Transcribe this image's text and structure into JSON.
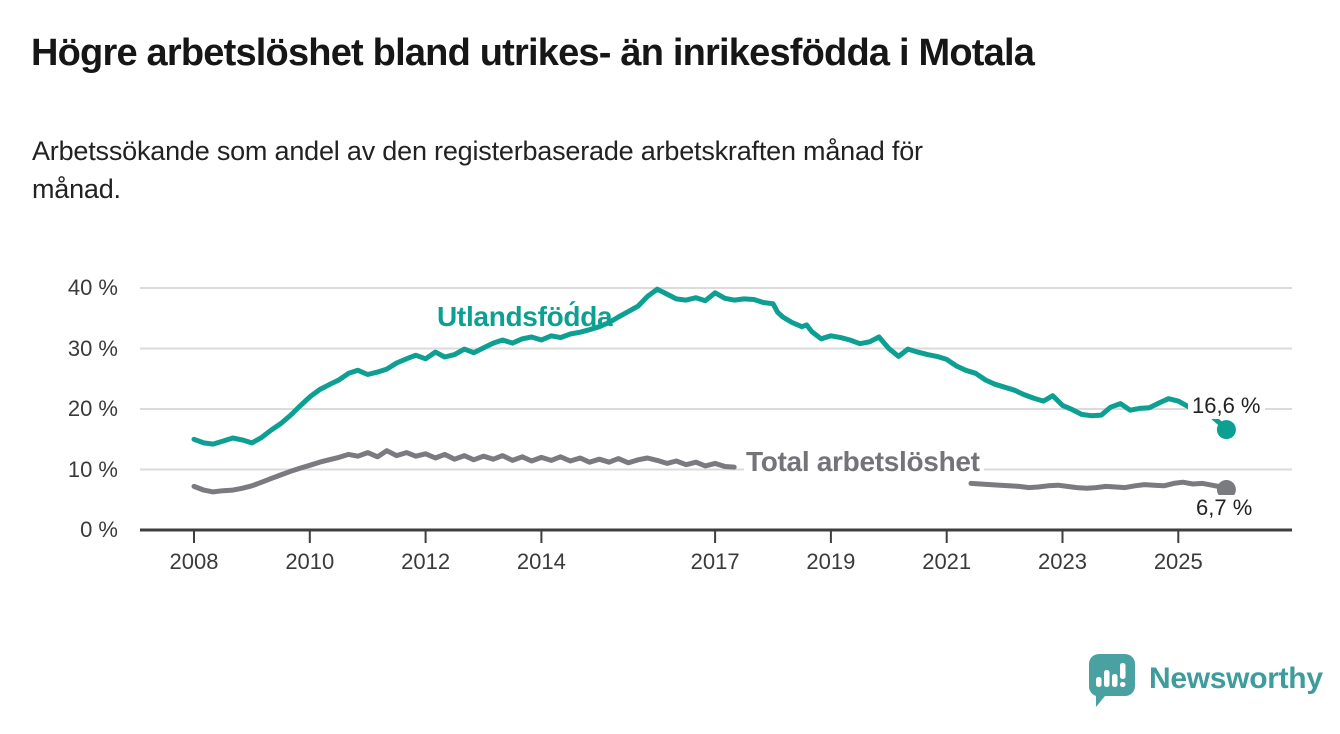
{
  "header": {
    "title": "Högre arbetslöshet bland utrikes- än inrikesfödda i Motala",
    "subtitle_lines": [
      "Arbetssökande som andel av den registerbaserade arbetskraften månad för",
      "månad."
    ]
  },
  "branding": {
    "logo_text": "Newsworthy",
    "logo_icon": "speech-bubble-bar-chart-icon",
    "logo_color": "#4aa1a1",
    "logo_text_color": "#3e9c9c"
  },
  "colors": {
    "series_foreign_born": "#0d9f92",
    "series_total": "#7a7a81",
    "gridline": "#dbdbdb",
    "axis": "#3f3f3f",
    "text_dark": "#222222",
    "tick_text": "#3a3a3a"
  },
  "chart_data": {
    "type": "line",
    "title": "Högre arbetslöshet bland utrikes- än inrikesfödda i Motala",
    "subtitle": "Arbetssökande som andel av den registerbaserade arbetskraften månad för månad.",
    "unit": "%",
    "ylim": [
      0,
      40
    ],
    "grid": true,
    "legend_position": "inline-labels",
    "yticks": [
      {
        "v": 40,
        "label": "40 %"
      },
      {
        "v": 30,
        "label": "30 %"
      },
      {
        "v": 20,
        "label": "20 %"
      },
      {
        "v": 10,
        "label": "10 %"
      },
      {
        "v": 0,
        "label": "0 %"
      }
    ],
    "xticks": [
      {
        "year": 2008,
        "label": "2008"
      },
      {
        "year": 2010,
        "label": "2010"
      },
      {
        "year": 2012,
        "label": "2012"
      },
      {
        "year": 2014,
        "label": "2014"
      },
      {
        "year": 2017,
        "label": "2017"
      },
      {
        "year": 2019,
        "label": "2019"
      },
      {
        "year": 2021,
        "label": "2021"
      },
      {
        "year": 2023,
        "label": "2023"
      },
      {
        "year": 2025,
        "label": "2025"
      }
    ],
    "series": [
      {
        "name": "Utlandsföd́da",
        "color": "#0d9f92",
        "end_label": "16,6 %",
        "end_value": 16.6,
        "points": [
          [
            2008.0,
            15.0
          ],
          [
            2008.17,
            14.4
          ],
          [
            2008.33,
            14.2
          ],
          [
            2008.5,
            14.7
          ],
          [
            2008.67,
            15.2
          ],
          [
            2008.83,
            14.9
          ],
          [
            2009.0,
            14.4
          ],
          [
            2009.17,
            15.3
          ],
          [
            2009.33,
            16.5
          ],
          [
            2009.5,
            17.6
          ],
          [
            2009.67,
            19.0
          ],
          [
            2009.83,
            20.5
          ],
          [
            2010.0,
            22.0
          ],
          [
            2010.17,
            23.2
          ],
          [
            2010.33,
            24.0
          ],
          [
            2010.5,
            24.8
          ],
          [
            2010.67,
            25.9
          ],
          [
            2010.83,
            26.4
          ],
          [
            2011.0,
            25.7
          ],
          [
            2011.17,
            26.1
          ],
          [
            2011.33,
            26.6
          ],
          [
            2011.5,
            27.6
          ],
          [
            2011.67,
            28.3
          ],
          [
            2011.83,
            28.9
          ],
          [
            2012.0,
            28.3
          ],
          [
            2012.17,
            29.4
          ],
          [
            2012.33,
            28.6
          ],
          [
            2012.5,
            29.0
          ],
          [
            2012.67,
            29.9
          ],
          [
            2012.83,
            29.3
          ],
          [
            2013.0,
            30.1
          ],
          [
            2013.17,
            30.9
          ],
          [
            2013.33,
            31.4
          ],
          [
            2013.5,
            30.9
          ],
          [
            2013.67,
            31.6
          ],
          [
            2013.83,
            31.9
          ],
          [
            2014.0,
            31.4
          ],
          [
            2014.17,
            32.1
          ],
          [
            2014.33,
            31.8
          ],
          [
            2014.5,
            32.4
          ],
          [
            2014.67,
            32.7
          ],
          [
            2014.83,
            33.1
          ],
          [
            2015.0,
            33.6
          ],
          [
            2015.17,
            34.3
          ],
          [
            2015.33,
            35.2
          ],
          [
            2015.5,
            36.1
          ],
          [
            2015.67,
            37.0
          ],
          [
            2015.83,
            38.6
          ],
          [
            2016.0,
            39.8
          ],
          [
            2016.17,
            39.0
          ],
          [
            2016.33,
            38.2
          ],
          [
            2016.5,
            38.0
          ],
          [
            2016.67,
            38.4
          ],
          [
            2016.83,
            37.9
          ],
          [
            2017.0,
            39.2
          ],
          [
            2017.17,
            38.3
          ],
          [
            2017.33,
            38.0
          ],
          [
            2017.5,
            38.2
          ],
          [
            2017.67,
            38.1
          ],
          [
            2017.83,
            37.6
          ],
          [
            2018.0,
            37.4
          ],
          [
            2018.08,
            36.0
          ],
          [
            2018.17,
            35.2
          ],
          [
            2018.33,
            34.3
          ],
          [
            2018.5,
            33.6
          ],
          [
            2018.58,
            33.9
          ],
          [
            2018.67,
            32.8
          ],
          [
            2018.83,
            31.6
          ],
          [
            2019.0,
            32.1
          ],
          [
            2019.17,
            31.8
          ],
          [
            2019.33,
            31.4
          ],
          [
            2019.5,
            30.8
          ],
          [
            2019.67,
            31.1
          ],
          [
            2019.83,
            31.9
          ],
          [
            2020.0,
            30.0
          ],
          [
            2020.17,
            28.7
          ],
          [
            2020.33,
            29.9
          ],
          [
            2020.5,
            29.4
          ],
          [
            2020.67,
            29.0
          ],
          [
            2020.83,
            28.7
          ],
          [
            2021.0,
            28.2
          ],
          [
            2021.17,
            27.1
          ],
          [
            2021.33,
            26.4
          ],
          [
            2021.5,
            25.9
          ],
          [
            2021.67,
            24.8
          ],
          [
            2021.83,
            24.1
          ],
          [
            2022.0,
            23.6
          ],
          [
            2022.17,
            23.1
          ],
          [
            2022.33,
            22.4
          ],
          [
            2022.5,
            21.8
          ],
          [
            2022.67,
            21.3
          ],
          [
            2022.83,
            22.2
          ],
          [
            2023.0,
            20.6
          ],
          [
            2023.17,
            19.9
          ],
          [
            2023.33,
            19.1
          ],
          [
            2023.5,
            18.9
          ],
          [
            2023.67,
            19.0
          ],
          [
            2023.83,
            20.3
          ],
          [
            2024.0,
            20.9
          ],
          [
            2024.17,
            19.8
          ],
          [
            2024.33,
            20.1
          ],
          [
            2024.5,
            20.2
          ],
          [
            2024.67,
            21.0
          ],
          [
            2024.83,
            21.7
          ],
          [
            2025.0,
            21.3
          ],
          [
            2025.17,
            20.4
          ],
          [
            2025.33,
            19.9
          ],
          [
            2025.5,
            19.7
          ],
          [
            2025.58,
            18.8
          ],
          [
            2025.75,
            17.4
          ],
          [
            2025.83,
            16.6
          ]
        ]
      },
      {
        "name": "Total arbetslöshet",
        "color": "#7a7a81",
        "end_label": "6,7 %",
        "end_value": 6.7,
        "label_gap_years": [
          2017.45,
          2021.4
        ],
        "points": [
          [
            2008.0,
            7.2
          ],
          [
            2008.17,
            6.6
          ],
          [
            2008.33,
            6.3
          ],
          [
            2008.5,
            6.5
          ],
          [
            2008.67,
            6.6
          ],
          [
            2008.83,
            6.9
          ],
          [
            2009.0,
            7.3
          ],
          [
            2009.17,
            7.9
          ],
          [
            2009.33,
            8.5
          ],
          [
            2009.5,
            9.1
          ],
          [
            2009.67,
            9.7
          ],
          [
            2009.83,
            10.2
          ],
          [
            2010.0,
            10.7
          ],
          [
            2010.17,
            11.2
          ],
          [
            2010.33,
            11.6
          ],
          [
            2010.5,
            12.0
          ],
          [
            2010.67,
            12.5
          ],
          [
            2010.83,
            12.2
          ],
          [
            2011.0,
            12.8
          ],
          [
            2011.17,
            12.1
          ],
          [
            2011.33,
            13.1
          ],
          [
            2011.5,
            12.3
          ],
          [
            2011.67,
            12.8
          ],
          [
            2011.83,
            12.2
          ],
          [
            2012.0,
            12.6
          ],
          [
            2012.17,
            11.9
          ],
          [
            2012.33,
            12.5
          ],
          [
            2012.5,
            11.7
          ],
          [
            2012.67,
            12.3
          ],
          [
            2012.83,
            11.6
          ],
          [
            2013.0,
            12.2
          ],
          [
            2013.17,
            11.7
          ],
          [
            2013.33,
            12.3
          ],
          [
            2013.5,
            11.5
          ],
          [
            2013.67,
            12.1
          ],
          [
            2013.83,
            11.4
          ],
          [
            2014.0,
            12.0
          ],
          [
            2014.17,
            11.5
          ],
          [
            2014.33,
            12.1
          ],
          [
            2014.5,
            11.4
          ],
          [
            2014.67,
            11.9
          ],
          [
            2014.83,
            11.2
          ],
          [
            2015.0,
            11.7
          ],
          [
            2015.17,
            11.2
          ],
          [
            2015.33,
            11.8
          ],
          [
            2015.5,
            11.1
          ],
          [
            2015.67,
            11.6
          ],
          [
            2015.83,
            11.9
          ],
          [
            2016.0,
            11.5
          ],
          [
            2016.17,
            11.0
          ],
          [
            2016.33,
            11.4
          ],
          [
            2016.5,
            10.8
          ],
          [
            2016.67,
            11.2
          ],
          [
            2016.83,
            10.6
          ],
          [
            2017.0,
            11.0
          ],
          [
            2017.17,
            10.5
          ],
          [
            2017.33,
            10.4
          ],
          [
            2017.5,
            10.2
          ],
          [
            2017.67,
            9.9
          ],
          [
            2017.83,
            9.6
          ],
          [
            2018.0,
            9.4
          ],
          [
            2018.25,
            9.1
          ],
          [
            2018.5,
            8.8
          ],
          [
            2018.75,
            8.6
          ],
          [
            2019.0,
            8.5
          ],
          [
            2019.25,
            8.3
          ],
          [
            2019.5,
            8.2
          ],
          [
            2019.75,
            8.4
          ],
          [
            2020.0,
            8.3
          ],
          [
            2020.25,
            9.0
          ],
          [
            2020.5,
            9.2
          ],
          [
            2020.75,
            8.9
          ],
          [
            2021.0,
            8.5
          ],
          [
            2021.17,
            8.1
          ],
          [
            2021.33,
            7.8
          ],
          [
            2021.42,
            7.7
          ],
          [
            2021.58,
            7.6
          ],
          [
            2021.75,
            7.5
          ],
          [
            2021.92,
            7.4
          ],
          [
            2022.08,
            7.3
          ],
          [
            2022.25,
            7.2
          ],
          [
            2022.42,
            7.0
          ],
          [
            2022.58,
            7.1
          ],
          [
            2022.75,
            7.3
          ],
          [
            2022.92,
            7.4
          ],
          [
            2023.08,
            7.2
          ],
          [
            2023.25,
            7.0
          ],
          [
            2023.42,
            6.9
          ],
          [
            2023.58,
            7.0
          ],
          [
            2023.75,
            7.2
          ],
          [
            2023.92,
            7.1
          ],
          [
            2024.08,
            7.0
          ],
          [
            2024.25,
            7.3
          ],
          [
            2024.42,
            7.5
          ],
          [
            2024.58,
            7.4
          ],
          [
            2024.75,
            7.3
          ],
          [
            2024.92,
            7.7
          ],
          [
            2025.08,
            7.9
          ],
          [
            2025.25,
            7.6
          ],
          [
            2025.42,
            7.7
          ],
          [
            2025.58,
            7.4
          ],
          [
            2025.75,
            7.1
          ],
          [
            2025.83,
            6.7
          ]
        ]
      }
    ]
  }
}
